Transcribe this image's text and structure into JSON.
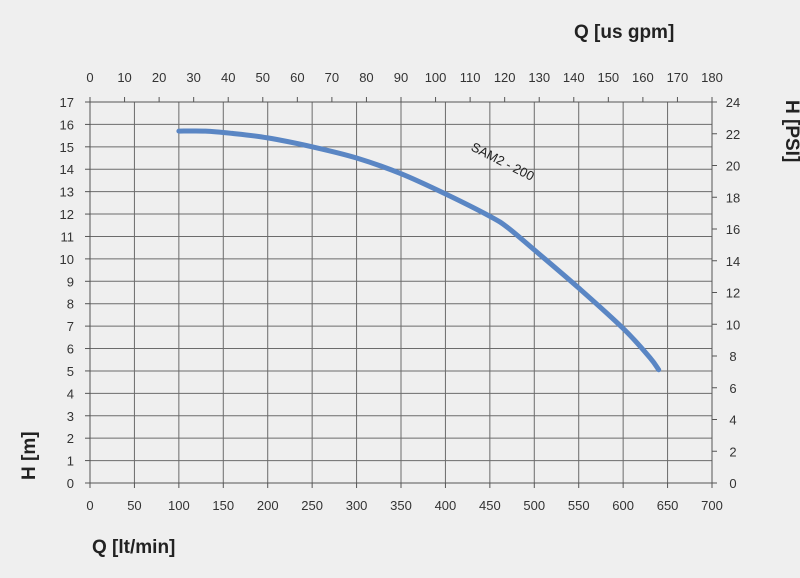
{
  "chart_data": {
    "type": "line",
    "title": "",
    "xlabel": "Q [lt/min]",
    "x2label": "Q [us gpm]",
    "ylabel": "H [m]",
    "y2label": "H [PSI]",
    "xlim": [
      0,
      700
    ],
    "x2lim": [
      0,
      180
    ],
    "ylim": [
      0,
      17
    ],
    "y2lim": [
      0,
      24
    ],
    "x_ticks": [
      "0",
      "50",
      "100",
      "150",
      "200",
      "250",
      "300",
      "350",
      "400",
      "450",
      "500",
      "550",
      "600",
      "650",
      "700"
    ],
    "x2_ticks": [
      "0",
      "10",
      "20",
      "30",
      "40",
      "50",
      "60",
      "70",
      "80",
      "90",
      "100",
      "110",
      "120",
      "130",
      "140",
      "150",
      "160",
      "170",
      "180"
    ],
    "y_ticks": [
      "0",
      "1",
      "2",
      "3",
      "4",
      "5",
      "6",
      "7",
      "8",
      "9",
      "10",
      "11",
      "12",
      "13",
      "14",
      "15",
      "16",
      "17"
    ],
    "y2_ticks": [
      "0",
      "2",
      "4",
      "6",
      "8",
      "10",
      "12",
      "14",
      "16",
      "18",
      "20",
      "22",
      "24"
    ],
    "grid": true,
    "series": [
      {
        "name": "SAM2 - 200",
        "color": "#5a86c4",
        "x": [
          100,
          130,
          160,
          200,
          250,
          300,
          350,
          400,
          450,
          470,
          500,
          550,
          600,
          630,
          640
        ],
        "y": [
          15.7,
          15.7,
          15.6,
          15.4,
          15.0,
          14.5,
          13.8,
          12.9,
          11.9,
          11.4,
          10.4,
          8.7,
          6.9,
          5.6,
          5.05
        ]
      }
    ]
  }
}
